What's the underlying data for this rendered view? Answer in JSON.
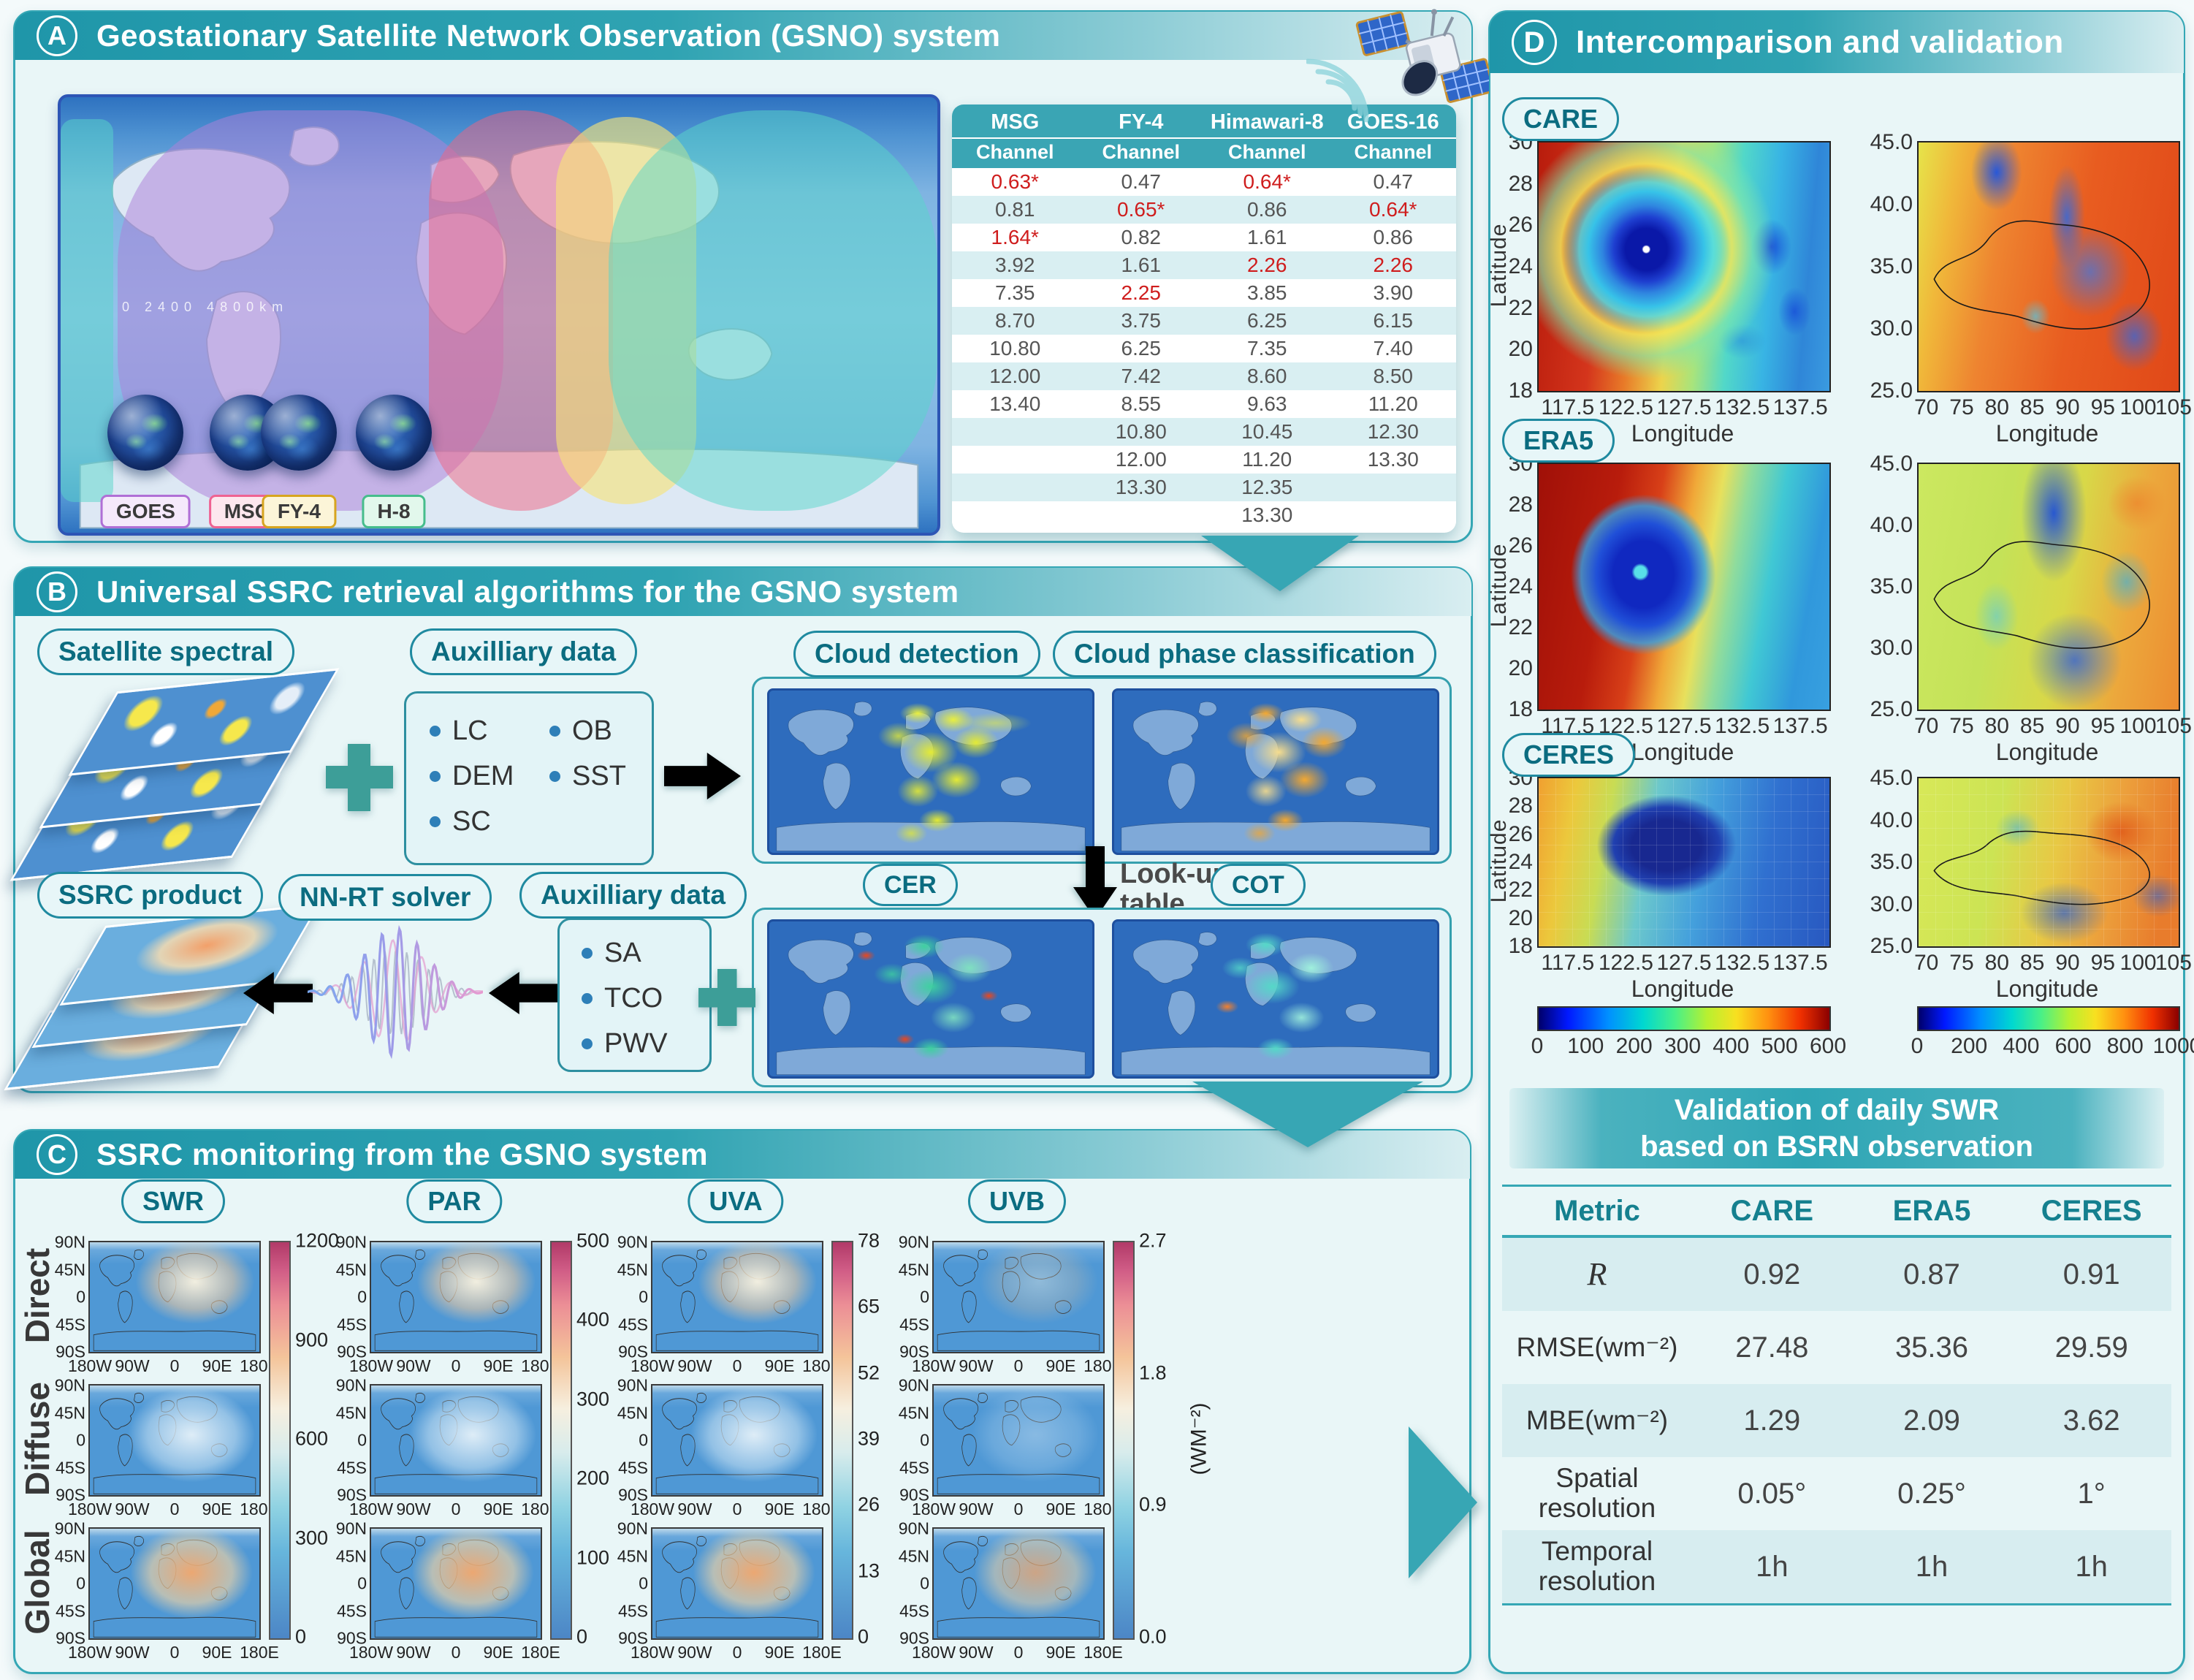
{
  "panelA": {
    "badge": "A",
    "title": "Geostationary Satellite Network Observation (GSNO) system",
    "map": {
      "scale_text": "0   2400   4800km",
      "satellites": [
        {
          "label": "GOES",
          "color": "#b06fd6",
          "bg": "#f5e9fb",
          "fill": "rgba(173,128,216,0.52)"
        },
        {
          "label": "MSG",
          "color": "#ef6292",
          "bg": "#fde7ee",
          "fill": "rgba(240,100,130,0.5)"
        },
        {
          "label": "FY-4",
          "color": "#d7a51f",
          "bg": "#fcf5d8",
          "fill": "rgba(247,227,120,0.62)"
        },
        {
          "label": "H-8",
          "color": "#46bd8c",
          "bg": "#e2f8ec",
          "fill": "rgba(88,214,202,0.5)"
        }
      ]
    },
    "channel_table": {
      "satellites": [
        "MSG",
        "FY-4",
        "Himawari-8",
        "GOES-16"
      ],
      "subheader": "Channel",
      "rows": [
        [
          {
            "v": "0.63*",
            "red": true
          },
          {
            "v": "0.47"
          },
          {
            "v": "0.64*",
            "red": true
          },
          {
            "v": "0.47"
          }
        ],
        [
          {
            "v": "0.81"
          },
          {
            "v": "0.65*",
            "red": true
          },
          {
            "v": "0.86"
          },
          {
            "v": "0.64*",
            "red": true
          }
        ],
        [
          {
            "v": "1.64*",
            "red": true
          },
          {
            "v": "0.82"
          },
          {
            "v": "1.61"
          },
          {
            "v": "0.86"
          }
        ],
        [
          {
            "v": "3.92"
          },
          {
            "v": "1.61"
          },
          {
            "v": "2.26",
            "red": true
          },
          {
            "v": "2.26",
            "red": true
          }
        ],
        [
          {
            "v": "7.35"
          },
          {
            "v": "2.25",
            "red": true
          },
          {
            "v": "3.85"
          },
          {
            "v": "3.90"
          }
        ],
        [
          {
            "v": "8.70"
          },
          {
            "v": "3.75"
          },
          {
            "v": "6.25"
          },
          {
            "v": "6.15"
          }
        ],
        [
          {
            "v": "10.80"
          },
          {
            "v": "6.25"
          },
          {
            "v": "7.35"
          },
          {
            "v": "7.40"
          }
        ],
        [
          {
            "v": "12.00"
          },
          {
            "v": "7.42"
          },
          {
            "v": "8.60"
          },
          {
            "v": "8.50"
          }
        ],
        [
          {
            "v": "13.40"
          },
          {
            "v": "8.55"
          },
          {
            "v": "9.63"
          },
          {
            "v": "11.20"
          }
        ],
        [
          {
            "v": ""
          },
          {
            "v": "10.80"
          },
          {
            "v": "10.45"
          },
          {
            "v": "12.30"
          }
        ],
        [
          {
            "v": ""
          },
          {
            "v": "12.00"
          },
          {
            "v": "11.20"
          },
          {
            "v": "13.30"
          }
        ],
        [
          {
            "v": ""
          },
          {
            "v": "13.30"
          },
          {
            "v": "12.35"
          },
          {
            "v": ""
          }
        ],
        [
          {
            "v": ""
          },
          {
            "v": ""
          },
          {
            "v": "13.30"
          },
          {
            "v": ""
          }
        ]
      ]
    }
  },
  "panelB": {
    "badge": "B",
    "title": "Universal SSRC retrieval algorithms for the GSNO system",
    "labels": {
      "satellite_spectral": "Satellite spectral",
      "auxilliary_data_1": "Auxilliary data",
      "cloud_detection": "Cloud detection",
      "cloud_phase": "Cloud phase classification",
      "lookup_line1": "Look-up",
      "lookup_line2": "table",
      "cer": "CER",
      "cot": "COT",
      "ssrc_product": "SSRC product",
      "nnrt_solver": "NN-RT solver",
      "auxilliary_data_2": "Auxilliary data"
    },
    "aux1_col1": [
      "LC",
      "DEM",
      "SC"
    ],
    "aux1_col2": [
      "OB",
      "SST"
    ],
    "aux2": [
      "SA",
      "TCO",
      "PWV"
    ]
  },
  "panelC": {
    "badge": "C",
    "title": "SSRC monitoring from the GSNO system",
    "rows": [
      "Direct",
      "Diffuse",
      "Global"
    ],
    "columns": [
      {
        "label": "SWR",
        "cb_ticks": [
          "1200",
          "900",
          "600",
          "300",
          "0"
        ]
      },
      {
        "label": "PAR",
        "cb_ticks": [
          "500",
          "400",
          "300",
          "200",
          "100",
          "0"
        ]
      },
      {
        "label": "UVA",
        "cb_ticks": [
          "78",
          "65",
          "52",
          "39",
          "26",
          "13",
          "0"
        ]
      },
      {
        "label": "UVB",
        "cb_ticks": [
          "2.7",
          "1.8",
          "0.9",
          "0.0"
        ],
        "unit": "(WM⁻²)"
      }
    ],
    "yticks": [
      "90N",
      "45N",
      "0",
      "45S",
      "90S"
    ],
    "xticks": [
      "180W",
      "90W",
      "0",
      "90E",
      "180E"
    ]
  },
  "panelD": {
    "badge": "D",
    "title": "Intercomparison and validation",
    "maps": {
      "rows": [
        "CARE",
        "ERA5",
        "CERES"
      ],
      "left": {
        "ylabel": "Latitude",
        "xlabel": "Longitude",
        "yticks": [
          "30",
          "28",
          "26",
          "24",
          "22",
          "20",
          "18"
        ],
        "xticks": [
          "117.5",
          "122.5",
          "127.5",
          "132.5",
          "137.5"
        ]
      },
      "right": {
        "xlabel": "Longitude",
        "yticks": [
          "45.0",
          "40.0",
          "35.0",
          "30.0",
          "25.0"
        ],
        "xticks": [
          "70",
          "75",
          "80",
          "85",
          "90",
          "95",
          "100",
          "105"
        ]
      },
      "colorbar_left_ticks": [
        "0",
        "100",
        "200",
        "300",
        "400",
        "500",
        "600"
      ],
      "colorbar_right_ticks": [
        "0",
        "200",
        "400",
        "600",
        "800",
        "1000"
      ]
    },
    "band_line1": "Validation of daily SWR",
    "band_line2": "based on BSRN observation",
    "validation_table": {
      "headers": [
        "Metric",
        "CARE",
        "ERA5",
        "CERES"
      ],
      "rows": [
        {
          "metric": "R",
          "italic": true,
          "values": [
            "0.92",
            "0.87",
            "0.91"
          ]
        },
        {
          "metric": "RMSE(wm⁻²)",
          "values": [
            "27.48",
            "35.36",
            "29.59"
          ]
        },
        {
          "metric": "MBE(wm⁻²)",
          "values": [
            "1.29",
            "2.09",
            "3.62"
          ]
        },
        {
          "metric": "Spatial resolution",
          "values": [
            "0.05°",
            "0.25°",
            "1°"
          ]
        },
        {
          "metric": "Temporal resolution",
          "values": [
            "1h",
            "1h",
            "1h"
          ]
        }
      ]
    }
  }
}
